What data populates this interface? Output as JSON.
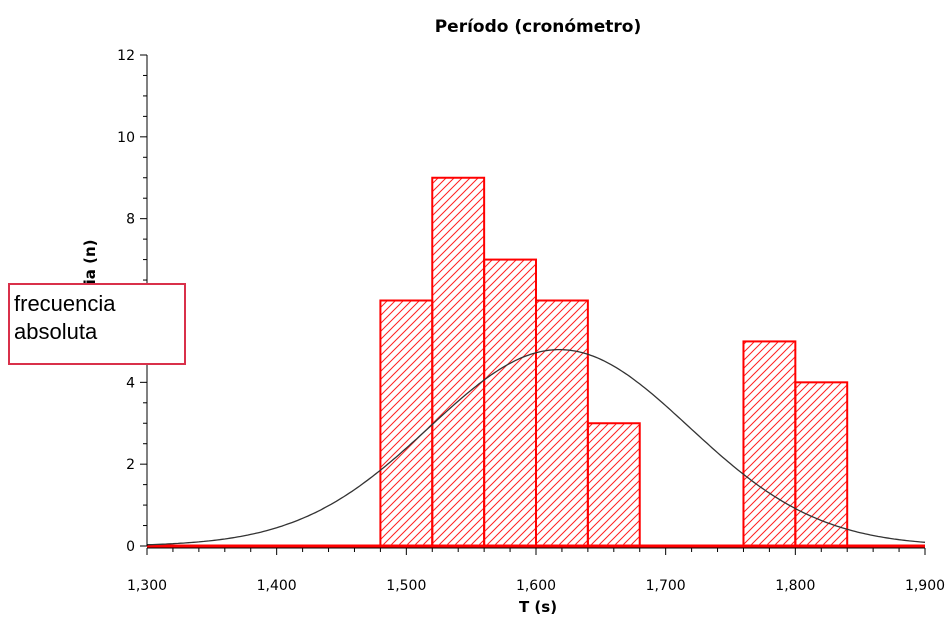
{
  "chart_data": {
    "type": "bar",
    "title": "Período (cronómetro)",
    "xlabel": "T (s)",
    "ylabel": "Frecuencia (n)",
    "xlim": [
      1.3,
      1.9
    ],
    "ylim": [
      0,
      12
    ],
    "x_ticks": [
      {
        "value": 1.3,
        "label": "1,300"
      },
      {
        "value": 1.4,
        "label": "1,400"
      },
      {
        "value": 1.5,
        "label": "1,500"
      },
      {
        "value": 1.6,
        "label": "1,600"
      },
      {
        "value": 1.7,
        "label": "1,700"
      },
      {
        "value": 1.8,
        "label": "1,800"
      },
      {
        "value": 1.9,
        "label": "1,900"
      }
    ],
    "y_ticks": [
      {
        "value": 0,
        "label": "0"
      },
      {
        "value": 2,
        "label": "2"
      },
      {
        "value": 4,
        "label": "4"
      },
      {
        "value": 6,
        "label": "6"
      },
      {
        "value": 8,
        "label": "8"
      },
      {
        "value": 10,
        "label": "10"
      },
      {
        "value": 12,
        "label": "12"
      }
    ],
    "bins": [
      {
        "start": 1.48,
        "end": 1.52,
        "count": 6
      },
      {
        "start": 1.52,
        "end": 1.56,
        "count": 9
      },
      {
        "start": 1.56,
        "end": 1.6,
        "count": 7
      },
      {
        "start": 1.6,
        "end": 1.64,
        "count": 6
      },
      {
        "start": 1.64,
        "end": 1.68,
        "count": 3
      },
      {
        "start": 1.76,
        "end": 1.8,
        "count": 5
      },
      {
        "start": 1.8,
        "end": 1.84,
        "count": 4
      }
    ],
    "normal_curve": {
      "mean": 1.618,
      "std": 0.1,
      "peak": 4.8
    },
    "grid": false,
    "colors": {
      "bar": "#ff0000",
      "curve": "#333333",
      "axis": "#000000"
    }
  },
  "annotation": {
    "text": "frecuencia\nabsoluta",
    "color": "#d9304a"
  }
}
